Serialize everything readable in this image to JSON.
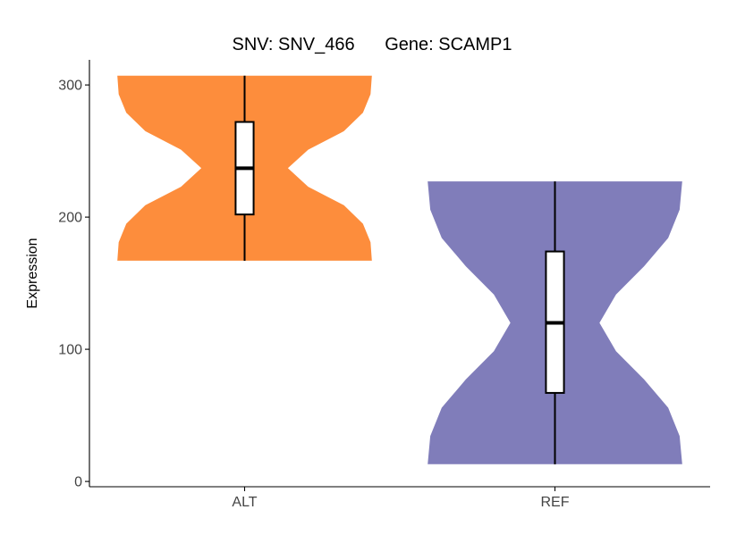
{
  "chart_data": {
    "type": "violin",
    "title_snv": "SNV: SNV_466",
    "title_gene": "Gene: SCAMP1",
    "xlabel": "",
    "ylabel": "Expression",
    "categories": [
      "ALT",
      "REF"
    ],
    "yticks": [
      0,
      100,
      200,
      300
    ],
    "ylim": [
      -4,
      319
    ],
    "grid": false,
    "legend": "none",
    "groups": [
      {
        "category": "ALT",
        "color": "#FD8D3C",
        "min": 167,
        "max": 307,
        "q1": 202,
        "median": 237,
        "q3": 272,
        "density": [
          1,
          0.99,
          0.93,
          0.78,
          0.5,
          0.34,
          0.5,
          0.78,
          0.93,
          0.99,
          1
        ]
      },
      {
        "category": "REF",
        "color": "#807DBA",
        "min": 13,
        "max": 227,
        "q1": 67,
        "median": 120,
        "q3": 174,
        "density": [
          1,
          0.98,
          0.89,
          0.7,
          0.48,
          0.35,
          0.48,
          0.7,
          0.89,
          0.98,
          1
        ]
      }
    ]
  }
}
